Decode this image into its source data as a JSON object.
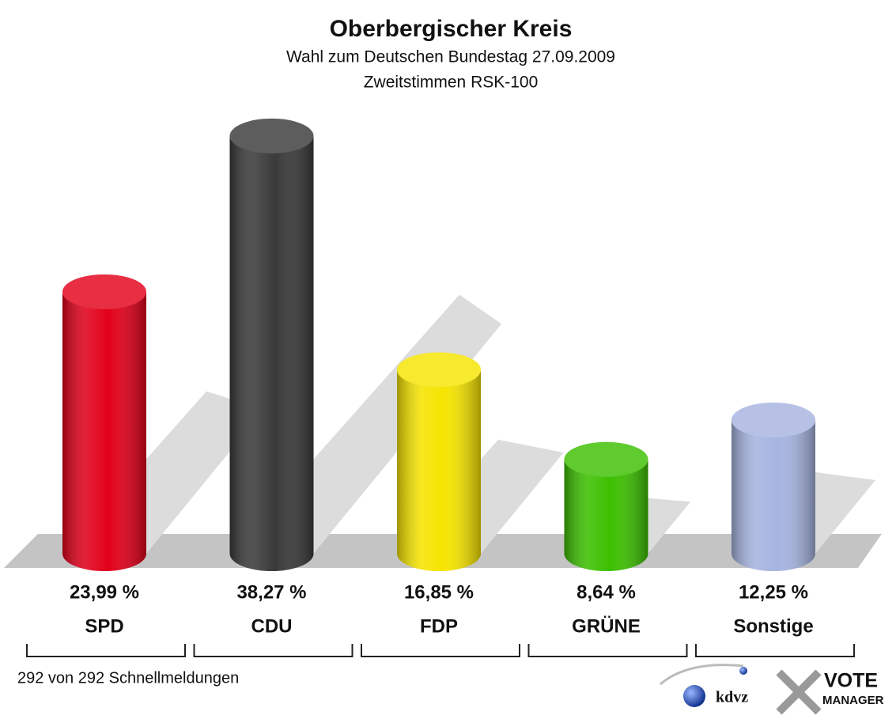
{
  "chart_data": {
    "type": "bar",
    "title": "Oberbergischer Kreis",
    "subtitle": [
      "Wahl zum Deutschen Bundestag 27.09.2009",
      "Zweitstimmen RSK-100"
    ],
    "categories": [
      "SPD",
      "CDU",
      "FDP",
      "GRÜNE",
      "Sonstige"
    ],
    "values": [
      23.99,
      38.27,
      16.85,
      8.64,
      12.25
    ],
    "value_labels": [
      "23,99 %",
      "38,27 %",
      "16,85 %",
      "8,64 %",
      "12,25 %"
    ],
    "colors": [
      "#e2001a",
      "#3a3a3a",
      "#f5e400",
      "#3cc000",
      "#a6b4e0"
    ],
    "footnote": "292 von 292 Schnellmeldungen"
  },
  "logo": {
    "left": "kdvz",
    "right": [
      "VOTE",
      "MANAGER"
    ]
  }
}
